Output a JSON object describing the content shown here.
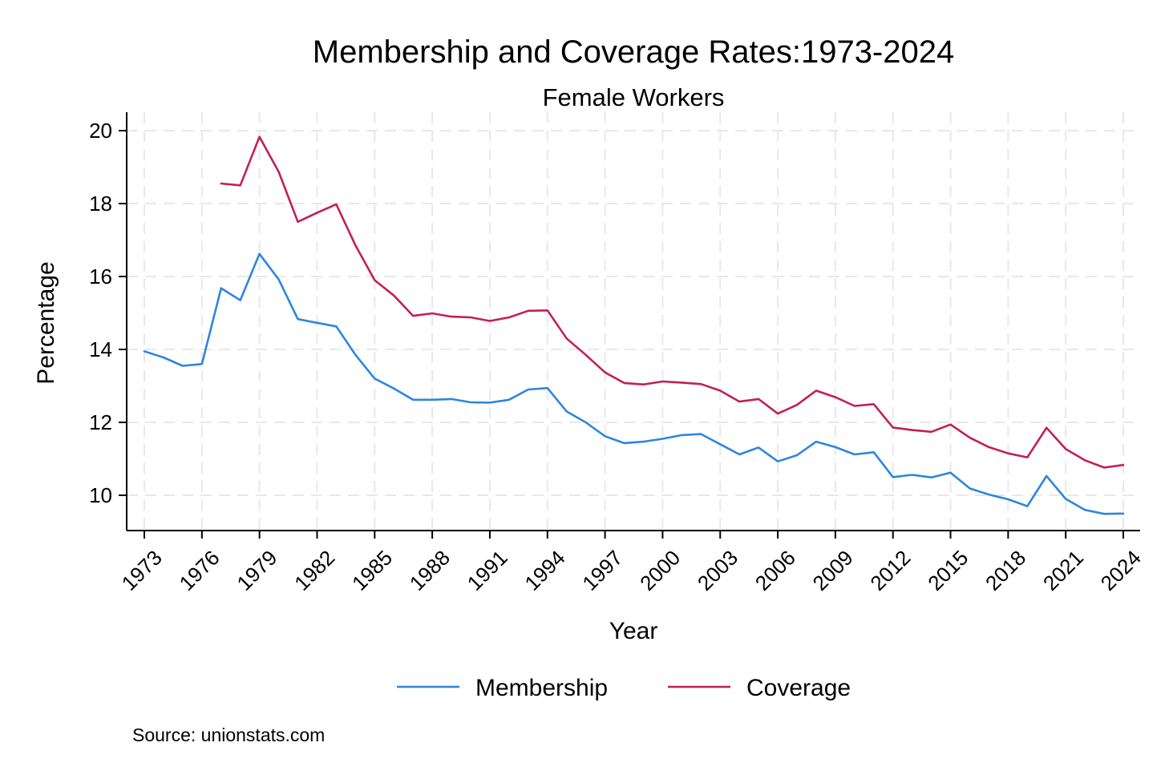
{
  "chart_data": {
    "type": "line",
    "title": "Membership and Coverage Rates:1973-2024",
    "subtitle": "Female Workers",
    "xlabel": "Year",
    "ylabel": "Percentage",
    "xlim": [
      1973,
      2024
    ],
    "ylim": [
      9.1,
      20.3
    ],
    "x_ticks": [
      1973,
      1976,
      1979,
      1982,
      1985,
      1988,
      1991,
      1994,
      1997,
      2000,
      2003,
      2006,
      2009,
      2012,
      2015,
      2018,
      2021,
      2024
    ],
    "y_ticks": [
      10,
      12,
      14,
      16,
      18,
      20
    ],
    "grid": true,
    "legend": "bottom",
    "source": "Source: unionstats.com",
    "series": [
      {
        "name": "Membership",
        "color": "#2e86de",
        "x": [
          1973,
          1974,
          1975,
          1976,
          1977,
          1978,
          1979,
          1980,
          1981,
          1982,
          1983,
          1984,
          1985,
          1986,
          1987,
          1988,
          1989,
          1990,
          1991,
          1992,
          1993,
          1994,
          1995,
          1996,
          1997,
          1998,
          1999,
          2000,
          2001,
          2002,
          2003,
          2004,
          2005,
          2006,
          2007,
          2008,
          2009,
          2010,
          2011,
          2012,
          2013,
          2014,
          2015,
          2016,
          2017,
          2018,
          2019,
          2020,
          2021,
          2022,
          2023,
          2024
        ],
        "values": [
          13.95,
          13.78,
          13.55,
          13.6,
          15.68,
          15.35,
          16.62,
          15.92,
          14.83,
          14.73,
          14.63,
          13.85,
          13.2,
          12.93,
          12.62,
          12.62,
          12.64,
          12.55,
          12.54,
          12.62,
          12.9,
          12.94,
          12.3,
          12.0,
          11.62,
          11.43,
          11.47,
          11.55,
          11.65,
          11.68,
          11.4,
          11.12,
          11.31,
          10.93,
          11.1,
          11.47,
          11.32,
          11.12,
          11.18,
          10.5,
          10.56,
          10.49,
          10.62,
          10.19,
          10.02,
          9.89,
          9.7,
          10.53,
          9.9,
          9.6,
          9.49,
          9.5
        ]
      },
      {
        "name": "Coverage",
        "color": "#c21f5b",
        "x": [
          1977,
          1978,
          1979,
          1980,
          1981,
          1982,
          1983,
          1984,
          1985,
          1986,
          1987,
          1988,
          1989,
          1990,
          1991,
          1992,
          1993,
          1994,
          1995,
          1996,
          1997,
          1998,
          1999,
          2000,
          2001,
          2002,
          2003,
          2004,
          2005,
          2006,
          2007,
          2008,
          2009,
          2010,
          2011,
          2012,
          2013,
          2014,
          2015,
          2016,
          2017,
          2018,
          2019,
          2020,
          2021,
          2022,
          2023,
          2024
        ],
        "values": [
          18.55,
          18.5,
          19.83,
          18.87,
          17.5,
          17.75,
          17.98,
          16.85,
          15.9,
          15.48,
          14.92,
          14.99,
          14.9,
          14.88,
          14.78,
          14.88,
          15.06,
          15.07,
          14.3,
          13.85,
          13.37,
          13.08,
          13.04,
          13.12,
          13.09,
          13.05,
          12.87,
          12.57,
          12.64,
          12.24,
          12.48,
          12.87,
          12.69,
          12.45,
          12.5,
          11.86,
          11.79,
          11.74,
          11.94,
          11.58,
          11.32,
          11.15,
          11.04,
          11.85,
          11.27,
          10.96,
          10.76,
          10.83
        ]
      }
    ]
  }
}
